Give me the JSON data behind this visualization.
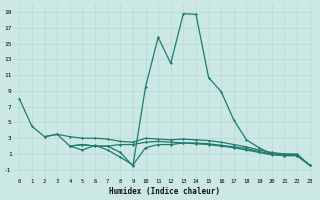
{
  "xlabel": "Humidex (Indice chaleur)",
  "background_color": "#cce8e4",
  "grid_color": "#b8d8d5",
  "line_color": "#1e7b6e",
  "ylim": [
    -2,
    20
  ],
  "xlim": [
    -0.5,
    23.5
  ],
  "yticks": [
    -1,
    1,
    3,
    5,
    7,
    9,
    11,
    13,
    15,
    17,
    19
  ],
  "xticks": [
    0,
    1,
    2,
    3,
    4,
    5,
    6,
    7,
    8,
    9,
    10,
    11,
    12,
    13,
    14,
    15,
    16,
    17,
    18,
    19,
    20,
    21,
    22,
    23
  ],
  "x": [
    0,
    1,
    2,
    3,
    4,
    5,
    6,
    7,
    8,
    9,
    10,
    11,
    12,
    13,
    14,
    15,
    16,
    17,
    18,
    19,
    20,
    21,
    22,
    23
  ],
  "line_main": [
    8.0,
    4.5,
    3.2,
    3.5,
    2.0,
    2.2,
    2.0,
    2.0,
    1.2,
    -0.5,
    9.5,
    15.8,
    12.5,
    18.8,
    18.7,
    10.7,
    8.9,
    5.3,
    2.8,
    1.8,
    1.0,
    1.0,
    1.0,
    -0.4
  ],
  "line2": [
    null,
    null,
    3.2,
    3.5,
    3.2,
    3.0,
    3.0,
    2.9,
    2.6,
    2.5,
    3.0,
    2.9,
    2.8,
    2.9,
    2.8,
    2.7,
    2.5,
    2.2,
    1.9,
    1.5,
    1.2,
    1.0,
    0.9,
    -0.4
  ],
  "line3": [
    null,
    null,
    null,
    null,
    2.0,
    2.2,
    2.0,
    2.0,
    2.2,
    2.2,
    2.5,
    2.6,
    2.5,
    2.4,
    2.4,
    2.3,
    2.1,
    1.9,
    1.7,
    1.3,
    1.0,
    0.8,
    0.8,
    -0.4
  ],
  "line_zigzag": [
    null,
    null,
    null,
    null,
    2.0,
    1.5,
    2.1,
    1.5,
    0.6,
    -0.4,
    1.8,
    2.2,
    2.2,
    2.4,
    2.3,
    2.2,
    2.0,
    1.8,
    1.5,
    1.2,
    0.9,
    0.8,
    0.8,
    -0.4
  ]
}
